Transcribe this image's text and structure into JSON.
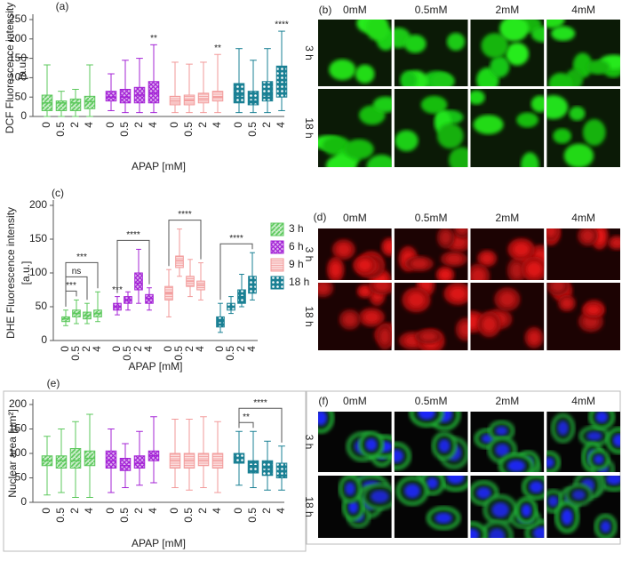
{
  "chart_data": [
    {
      "type": "box",
      "label": "(a)",
      "y_label": [
        "DCF Fluorescence intensity",
        "[a.u.]"
      ],
      "x_label": "APAP [mM]",
      "categories": [
        "0",
        "0.5",
        "2",
        "4"
      ],
      "ylim": [
        0,
        250
      ],
      "yticks": [
        0,
        50,
        100,
        150,
        200,
        250
      ],
      "series": [
        {
          "color": "#5cc85c",
          "min": [
            0,
            0,
            0,
            0
          ],
          "q1": [
            15,
            15,
            15,
            20
          ],
          "median": [
            35,
            35,
            35,
            38
          ],
          "q3": [
            55,
            40,
            45,
            52
          ],
          "max": [
            133,
            65,
            70,
            133
          ]
        },
        {
          "color": "#a424d6",
          "min": [
            15,
            10,
            10,
            10
          ],
          "q1": [
            40,
            35,
            35,
            35
          ],
          "median": [
            50,
            50,
            55,
            60
          ],
          "q3": [
            65,
            70,
            75,
            90
          ],
          "max": [
            110,
            145,
            150,
            185
          ]
        },
        {
          "color": "#f29a9a",
          "min": [
            10,
            10,
            10,
            10
          ],
          "q1": [
            30,
            30,
            35,
            40
          ],
          "median": [
            40,
            42,
            45,
            50
          ],
          "q3": [
            52,
            55,
            60,
            65
          ],
          "max": [
            140,
            135,
            140,
            160
          ]
        },
        {
          "color": "#1a8094",
          "min": [
            10,
            10,
            10,
            15
          ],
          "q1": [
            35,
            30,
            40,
            50
          ],
          "median": [
            55,
            40,
            55,
            85
          ],
          "q3": [
            85,
            65,
            90,
            130
          ],
          "max": [
            175,
            145,
            175,
            220
          ]
        }
      ],
      "annotations": [
        {
          "text": "**",
          "from": 7,
          "to": 7
        },
        {
          "text": "**",
          "from": 11,
          "to": 11
        },
        {
          "text": "****",
          "from": 15,
          "to": 15
        }
      ]
    },
    {
      "type": "box",
      "label": "(c)",
      "y_label": [
        "DHE Fluorescence intensity",
        "[a.u.]"
      ],
      "x_label": "APAP [mM]",
      "categories": [
        "0",
        "0.5",
        "2",
        "4"
      ],
      "ylim": [
        0,
        200
      ],
      "yticks": [
        0,
        50,
        100,
        150,
        200
      ],
      "legend": "right",
      "series": [
        {
          "name": "3 h",
          "color": "#5cc85c",
          "min": [
            22,
            25,
            25,
            28
          ],
          "q1": [
            28,
            35,
            32,
            35
          ],
          "median": [
            32,
            40,
            37,
            40
          ],
          "q3": [
            35,
            45,
            42,
            45
          ],
          "max": [
            45,
            60,
            55,
            72
          ]
        },
        {
          "name": "6 h",
          "color": "#a424d6",
          "min": [
            38,
            45,
            55,
            45
          ],
          "q1": [
            45,
            55,
            75,
            55
          ],
          "median": [
            50,
            60,
            85,
            62
          ],
          "q3": [
            55,
            65,
            100,
            68
          ],
          "max": [
            65,
            72,
            135,
            78
          ]
        },
        {
          "name": "9 h",
          "color": "#f29a9a",
          "min": [
            35,
            95,
            65,
            60
          ],
          "q1": [
            60,
            108,
            80,
            75
          ],
          "median": [
            70,
            118,
            88,
            82
          ],
          "q3": [
            80,
            125,
            95,
            88
          ],
          "max": [
            105,
            165,
            120,
            115
          ]
        },
        {
          "name": "18 h",
          "color": "#1a8094",
          "min": [
            12,
            40,
            50,
            60
          ],
          "q1": [
            20,
            45,
            55,
            70
          ],
          "median": [
            28,
            50,
            65,
            82
          ],
          "q3": [
            35,
            55,
            75,
            95
          ],
          "max": [
            55,
            65,
            98,
            130
          ]
        }
      ],
      "annotations": [
        {
          "text": "***",
          "from": 0,
          "to": 1
        },
        {
          "text": "ns",
          "from": 0,
          "to": 2
        },
        {
          "text": "***",
          "from": 0,
          "to": 3
        },
        {
          "text": "***",
          "from": 4,
          "to": 4
        },
        {
          "text": "****",
          "from": 4,
          "to": 7
        },
        {
          "text": "****",
          "from": 8,
          "to": 11
        },
        {
          "text": "****",
          "from": 12,
          "to": 15
        }
      ]
    },
    {
      "type": "box",
      "label": "(e)",
      "y_label": [
        "Nuclear area [µm²]"
      ],
      "x_label": "APAP [mM]",
      "categories": [
        "0",
        "0.5",
        "2",
        "4"
      ],
      "ylim": [
        0,
        200
      ],
      "yticks": [
        0,
        50,
        100,
        150,
        200
      ],
      "series": [
        {
          "color": "#5cc85c",
          "min": [
            15,
            20,
            10,
            10
          ],
          "q1": [
            75,
            70,
            70,
            75
          ],
          "median": [
            85,
            85,
            85,
            90
          ],
          "q3": [
            95,
            95,
            110,
            105
          ],
          "max": [
            135,
            150,
            165,
            180
          ]
        },
        {
          "color": "#a424d6",
          "min": [
            20,
            30,
            35,
            40
          ],
          "q1": [
            70,
            65,
            70,
            85
          ],
          "median": [
            85,
            75,
            80,
            95
          ],
          "q3": [
            105,
            90,
            95,
            105
          ],
          "max": [
            150,
            120,
            145,
            175
          ]
        },
        {
          "color": "#f29a9a",
          "min": [
            30,
            25,
            30,
            20
          ],
          "q1": [
            70,
            70,
            75,
            70
          ],
          "median": [
            85,
            85,
            85,
            85
          ],
          "q3": [
            100,
            100,
            100,
            100
          ],
          "max": [
            170,
            170,
            175,
            165
          ]
        },
        {
          "color": "#1a8094",
          "min": [
            35,
            30,
            25,
            25
          ],
          "q1": [
            80,
            60,
            55,
            50
          ],
          "median": [
            90,
            75,
            70,
            65
          ],
          "q3": [
            100,
            85,
            85,
            80
          ],
          "max": [
            145,
            145,
            125,
            115
          ]
        }
      ],
      "annotations": [
        {
          "text": "**",
          "from": 12,
          "to": 13
        },
        {
          "text": "****",
          "from": 12,
          "to": 15
        }
      ]
    }
  ],
  "image_panels": [
    {
      "label": "(b)",
      "columns": [
        "0mM",
        "0.5mM",
        "2mM",
        "4mM"
      ],
      "rows": [
        "3 h",
        "18 h"
      ]
    },
    {
      "label": "(d)",
      "columns": [
        "0mM",
        "0.5mM",
        "2mM",
        "4mM"
      ],
      "rows": [
        "3 h",
        "18 h"
      ]
    },
    {
      "label": "(f)",
      "columns": [
        "0mM",
        "0.5mM",
        "2mM",
        "4mM"
      ],
      "rows": [
        "3 h",
        "18 h"
      ]
    }
  ]
}
